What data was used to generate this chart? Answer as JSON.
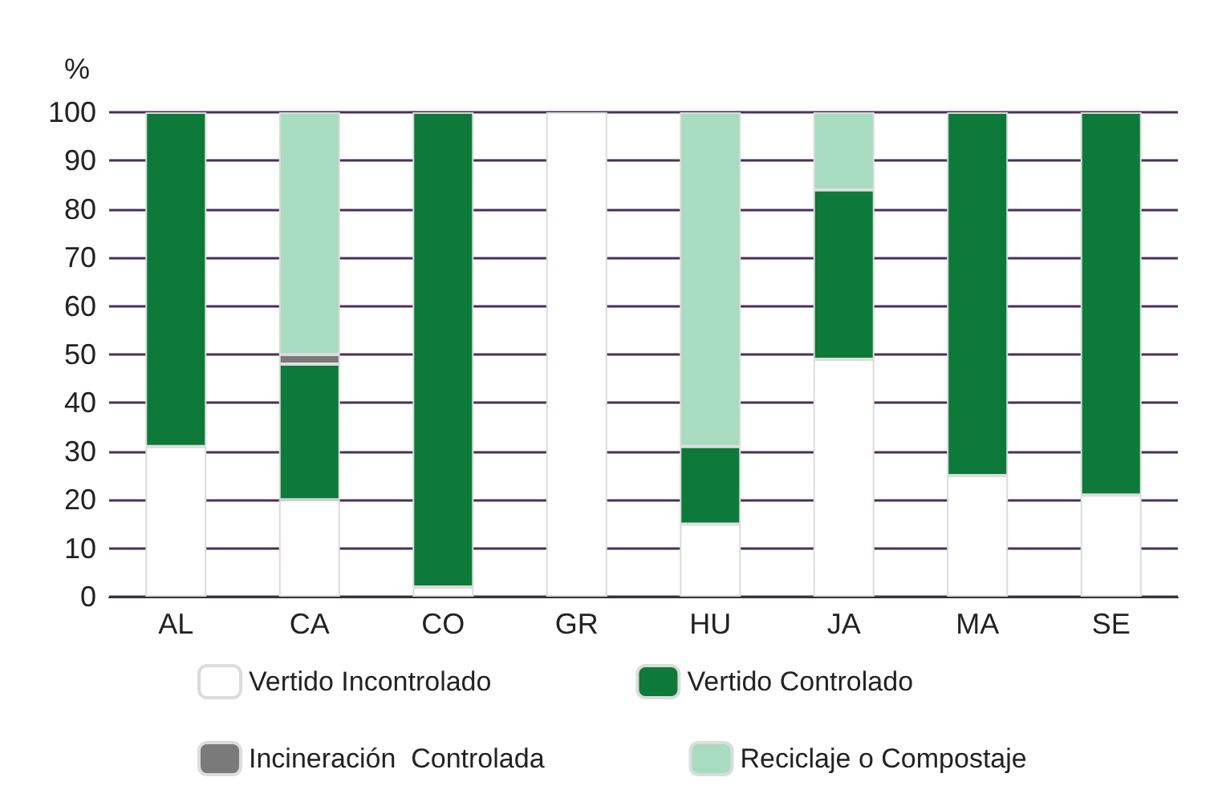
{
  "chart_data": {
    "type": "bar",
    "stacked": true,
    "ylabel": "%",
    "categories": [
      "AL",
      "CA",
      "CO",
      "GR",
      "HU",
      "JA",
      "MA",
      "SE"
    ],
    "series": [
      {
        "name": "Vertido Incontrolado",
        "color": "#ffffff",
        "values": [
          31,
          20,
          2,
          100,
          15,
          49,
          25,
          21
        ]
      },
      {
        "name": "Vertido Controlado",
        "color": "#0d7a3a",
        "values": [
          69,
          28,
          98,
          0,
          16,
          35,
          75,
          79
        ]
      },
      {
        "name": "Incineración  Controlada",
        "color": "#7a7a7a",
        "values": [
          0,
          2,
          0,
          0,
          0,
          0,
          0,
          0
        ]
      },
      {
        "name": "Reciclaje o Compostaje",
        "color": "#a8dcc0",
        "values": [
          0,
          50,
          0,
          0,
          69,
          16,
          0,
          0
        ]
      }
    ],
    "ylim": [
      0,
      100
    ],
    "yticks": [
      0,
      10,
      20,
      30,
      40,
      50,
      60,
      70,
      80,
      90,
      100
    ],
    "grid": "y",
    "legend": "bottom"
  }
}
